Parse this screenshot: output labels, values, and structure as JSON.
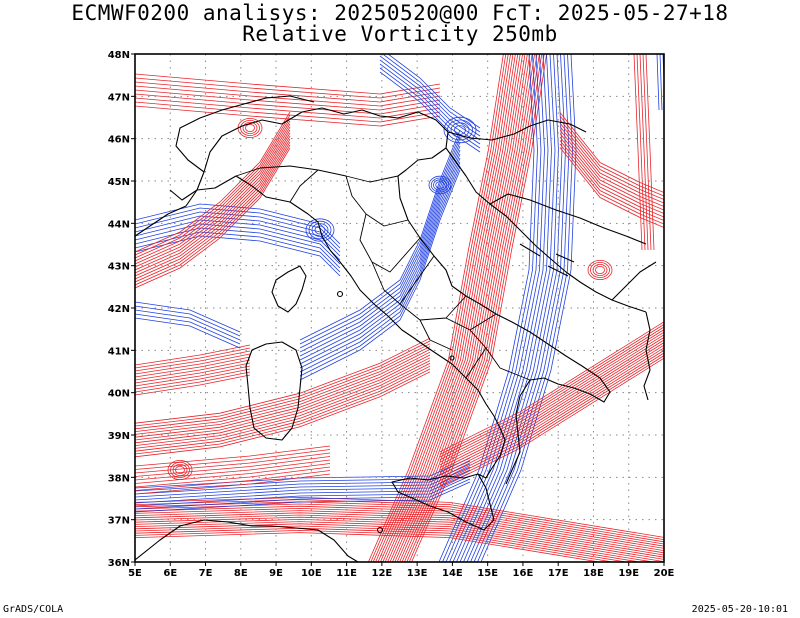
{
  "title_line1": "ECMWF0200 analisys: 20250520@00 FcT: 2025-05-27+18",
  "title_line2": "Relative Vorticity 250mb",
  "footer_left": "GrADS/COLA",
  "footer_right": "2025-05-20-10:01",
  "map": {
    "lon_range": [
      5,
      20
    ],
    "lat_range": [
      36,
      48
    ],
    "lon_labels": [
      "5E",
      "6E",
      "7E",
      "8E",
      "9E",
      "10E",
      "11E",
      "12E",
      "13E",
      "14E",
      "15E",
      "16E",
      "17E",
      "18E",
      "19E",
      "20E"
    ],
    "lat_labels": [
      "36N",
      "37N",
      "38N",
      "39N",
      "40N",
      "41N",
      "42N",
      "43N",
      "44N",
      "45N",
      "46N",
      "47N",
      "48N"
    ],
    "grid": "dotted",
    "colors": {
      "positive": "#e8242a",
      "negative": "#2040e0",
      "zero": "#b090d0",
      "borders": "#000000",
      "grid": "#888888"
    }
  }
}
